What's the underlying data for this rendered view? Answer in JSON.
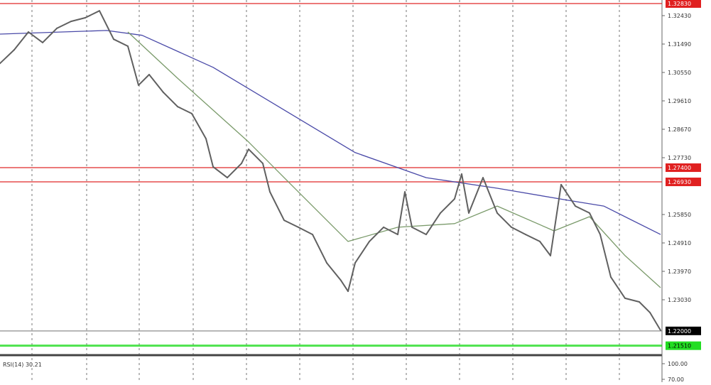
{
  "chart_data": {
    "type": "line",
    "title": "",
    "xlabel": "",
    "ylabel": "",
    "ylim": [
      1.214,
      1.329
    ],
    "grid": "vertical dashed",
    "y_ticks": [
      "1.32430",
      "1.31490",
      "1.30550",
      "1.29610",
      "1.28670",
      "1.27730",
      "1.25850",
      "1.24910",
      "1.23970",
      "1.23030"
    ],
    "price_series": {
      "x": [
        0,
        20,
        40,
        60,
        80,
        100,
        120,
        140,
        160,
        180,
        195,
        210,
        230,
        250,
        270,
        290,
        300,
        320,
        340,
        350,
        370,
        380,
        400,
        420,
        440,
        460,
        480,
        490,
        500,
        520,
        540,
        560,
        570,
        580,
        600,
        620,
        640,
        650,
        660,
        680,
        700,
        720,
        740,
        760,
        775,
        790,
        810,
        830,
        845,
        860,
        880,
        900,
        915,
        930
      ],
      "values": [
        1.3085,
        1.313,
        1.3189,
        1.3154,
        1.3201,
        1.3224,
        1.3236,
        1.3259,
        1.3165,
        1.3142,
        1.3013,
        1.3048,
        1.2989,
        1.2942,
        1.2919,
        1.2836,
        1.2743,
        1.2707,
        1.2754,
        1.2801,
        1.2754,
        1.266,
        1.2566,
        1.2543,
        1.2519,
        1.2425,
        1.2367,
        1.2331,
        1.2425,
        1.2496,
        1.2543,
        1.2519,
        1.266,
        1.2543,
        1.2519,
        1.259,
        1.2637,
        1.2719,
        1.259,
        1.2707,
        1.259,
        1.2543,
        1.2519,
        1.2496,
        1.2449,
        1.2684,
        1.2613,
        1.259,
        1.2519,
        1.2378,
        1.2308,
        1.2296,
        1.2261,
        1.2202
      ],
      "color": "#606060"
    },
    "ma_slow": {
      "x": [
        0,
        150,
        200,
        300,
        400,
        500,
        600,
        700,
        800,
        850,
        930
      ],
      "values": [
        1.3182,
        1.3194,
        1.3178,
        1.3072,
        1.2931,
        1.279,
        1.2707,
        1.2672,
        1.2632,
        1.2613,
        1.2519
      ],
      "color": "#4a4aa8"
    },
    "ma_fast": {
      "x": [
        180,
        250,
        350,
        420,
        490,
        560,
        640,
        700,
        780,
        830,
        880,
        930
      ],
      "values": [
        1.3189,
        1.3036,
        1.2825,
        1.266,
        1.2496,
        1.2543,
        1.2555,
        1.2613,
        1.2531,
        1.2578,
        1.2449,
        1.2343
      ],
      "color": "#7a9a6a"
    },
    "levels": [
      {
        "price": 1.3283,
        "label": "1.32830",
        "color": "#e02020"
      },
      {
        "price": 1.274,
        "label": "1.27400",
        "color": "#e02020"
      },
      {
        "price": 1.2693,
        "label": "1.26930",
        "color": "#e02020"
      },
      {
        "price": 1.22,
        "label": "1.22000",
        "color": "#000000"
      },
      {
        "price": 1.2151,
        "label": "1.21510",
        "color": "#22dd22"
      }
    ],
    "indicator": {
      "label": "RSI(14) 30.21",
      "y_ticks": [
        "100.00",
        "70.00"
      ]
    }
  }
}
